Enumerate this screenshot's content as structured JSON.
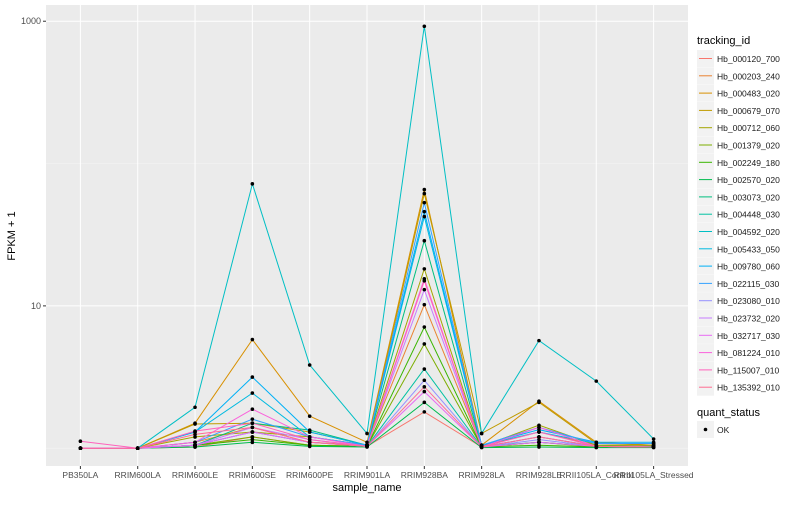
{
  "chart_data": {
    "type": "line",
    "xlabel": "sample_name",
    "ylabel": "FPKM + 1",
    "y_scale": "log10",
    "ylim": [
      0.75,
      1300
    ],
    "y_ticks": [
      10,
      1000
    ],
    "y_tick_labels": [
      "10",
      "1000"
    ],
    "grid": true,
    "background": "#EBEBEB",
    "legend_position": "right",
    "categories": [
      "PB350LA",
      "RRIM600LA",
      "RRIM600LE",
      "RRIM600SE",
      "RRIM600PE",
      "RRIM901LA",
      "RRIM928BA",
      "RRIM928LA",
      "RRIM928LE",
      "RRII105LA_Control",
      "RRII105LA_Stressed"
    ],
    "color_legend_title": "tracking_id",
    "shape_legend_title": "quant_status",
    "shape_legend_items": [
      "OK"
    ],
    "series": [
      {
        "name": "Hb_000120_700",
        "color": "#F8766D",
        "values": [
          1,
          1,
          1.02,
          1.2,
          1.05,
          1.03,
          1.8,
          1.02,
          1.1,
          1.03,
          1.02
        ]
      },
      {
        "name": "Hb_000203_240",
        "color": "#EA8331",
        "values": [
          1,
          1,
          1.1,
          1.4,
          1.1,
          1.05,
          10.2,
          1.03,
          1.3,
          1.05,
          1.04
        ]
      },
      {
        "name": "Hb_000483_020",
        "color": "#D89000",
        "values": [
          1,
          1,
          1.5,
          5.8,
          1.68,
          1.1,
          65.6,
          1.05,
          2.14,
          1.1,
          1.05
        ]
      },
      {
        "name": "Hb_000679_070",
        "color": "#C09B00",
        "values": [
          1,
          1,
          1.48,
          1.5,
          1.3,
          1.05,
          61.5,
          1.27,
          2.1,
          1.08,
          1.05
        ]
      },
      {
        "name": "Hb_000712_060",
        "color": "#A3A500",
        "values": [
          1,
          1,
          1.2,
          1.3,
          1.2,
          1.05,
          18.2,
          1.03,
          1.45,
          1.05,
          1.03
        ]
      },
      {
        "name": "Hb_001379_020",
        "color": "#7CAE00",
        "values": [
          1,
          1,
          1.05,
          1.2,
          1.05,
          1.03,
          5.4,
          1.02,
          1.1,
          1.02,
          1.02
        ]
      },
      {
        "name": "Hb_002249_180",
        "color": "#39B600",
        "values": [
          1,
          1,
          1.05,
          1.15,
          1.05,
          1.03,
          7.1,
          1.02,
          1.05,
          1.02,
          1.02
        ]
      },
      {
        "name": "Hb_002570_020",
        "color": "#00BB4E",
        "values": [
          1,
          1,
          1.02,
          1.1,
          1.03,
          1.02,
          2.1,
          1.01,
          1.02,
          1.01,
          1.01
        ]
      },
      {
        "name": "Hb_003073_020",
        "color": "#00BF7D",
        "values": [
          1,
          1,
          1.05,
          1.5,
          1.34,
          1.05,
          28.7,
          1.03,
          1.1,
          1.03,
          1.03
        ]
      },
      {
        "name": "Hb_004448_030",
        "color": "#00C1A3",
        "values": [
          1,
          1,
          1.05,
          1.3,
          1.1,
          1.03,
          3.6,
          1.02,
          1.2,
          1.03,
          1.03
        ]
      },
      {
        "name": "Hb_004592_020",
        "color": "#00BFC4",
        "values": [
          1,
          1,
          1.94,
          72,
          3.84,
          1.27,
          922,
          1.27,
          5.7,
          2.96,
          1.16
        ]
      },
      {
        "name": "Hb_005433_050",
        "color": "#00BAE0",
        "values": [
          1,
          1,
          1.3,
          2.44,
          1.2,
          1.05,
          42.4,
          1.05,
          1.3,
          1.08,
          1.08
        ]
      },
      {
        "name": "Hb_009780_060",
        "color": "#00B0F6",
        "values": [
          1,
          1,
          1.3,
          3.16,
          1.3,
          1.05,
          45.9,
          1.05,
          1.35,
          1.1,
          1.1
        ]
      },
      {
        "name": "Hb_022115_030",
        "color": "#35A2FF",
        "values": [
          1,
          1,
          1.1,
          1.6,
          1.2,
          1.05,
          53.1,
          1.05,
          1.4,
          1.08,
          1.08
        ]
      },
      {
        "name": "Hb_023080_010",
        "color": "#9590FF",
        "values": [
          1,
          1,
          1.05,
          1.3,
          1.1,
          1.03,
          3.0,
          1.02,
          1.15,
          1.03,
          1.02
        ]
      },
      {
        "name": "Hb_023732_020",
        "color": "#C77CFF",
        "values": [
          1,
          1,
          1.05,
          1.4,
          1.15,
          1.03,
          13.0,
          1.02,
          1.2,
          1.03,
          1.02
        ]
      },
      {
        "name": "Hb_032717_030",
        "color": "#E76BF3",
        "values": [
          1,
          1,
          1.05,
          1.3,
          1.1,
          1.03,
          2.5,
          1.02,
          1.1,
          1.03,
          1.02
        ]
      },
      {
        "name": "Hb_081224_010",
        "color": "#FA62DB",
        "values": [
          1,
          1,
          1.1,
          1.88,
          1.2,
          1.03,
          15.5,
          1.02,
          1.4,
          1.03,
          1.02
        ]
      },
      {
        "name": "Hb_115007_010",
        "color": "#FF62BC",
        "values": [
          1.12,
          1,
          1.32,
          1.5,
          1.15,
          1.03,
          15.0,
          1.02,
          1.3,
          1.03,
          1.02
        ]
      },
      {
        "name": "Hb_135392_010",
        "color": "#FF6C91",
        "values": [
          1,
          1,
          1.25,
          1.4,
          1.1,
          1.03,
          2.7,
          1.02,
          1.2,
          1.03,
          1.02
        ]
      }
    ]
  }
}
